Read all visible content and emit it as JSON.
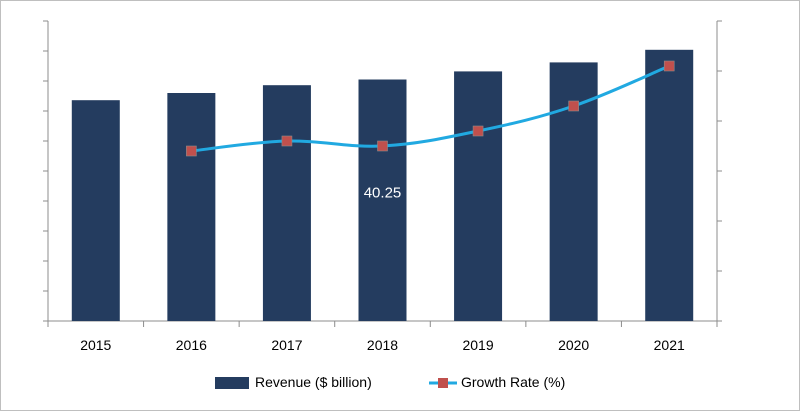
{
  "chart_data": {
    "type": "bar",
    "categories": [
      "2015",
      "2016",
      "2017",
      "2018",
      "2019",
      "2020",
      "2021"
    ],
    "series": [
      {
        "name": "Revenue ($ billion)",
        "type": "bar",
        "axis": "left",
        "values": [
          36.8,
          38.0,
          39.3,
          40.25,
          41.6,
          43.1,
          45.2
        ]
      },
      {
        "name": "Growth Rate (%)",
        "type": "line",
        "axis": "right",
        "values": [
          null,
          3.4,
          3.6,
          3.5,
          3.8,
          4.3,
          5.1
        ]
      }
    ],
    "data_labels": [
      {
        "series": 0,
        "category": "2018",
        "text": "40.25"
      }
    ],
    "ylim_left": [
      0,
      50
    ],
    "ylim_right": [
      0,
      6
    ],
    "grid": false,
    "legend_position": "bottom",
    "colors": {
      "bar": "#243c5f",
      "line": "#21a9e1",
      "marker": "#c0504d",
      "axis": "#8c8c8c"
    }
  }
}
